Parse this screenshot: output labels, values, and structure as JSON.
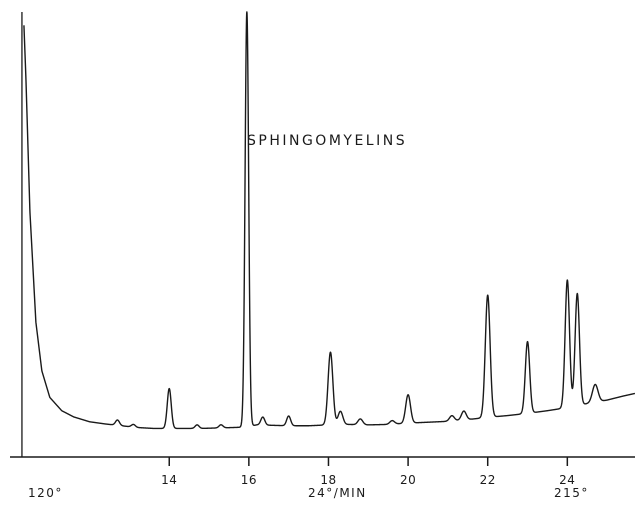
{
  "chart_data": {
    "type": "line",
    "title": "SPHINGOMYELINS",
    "xlabel": "",
    "ylabel": "",
    "xlim": [
      10.0,
      25.7
    ],
    "ylim": [
      0,
      100
    ],
    "x_ticks": [
      14,
      16,
      18,
      20,
      22,
      24
    ],
    "x_tick_labels": [
      "14",
      "16",
      "18",
      "20",
      "22",
      "24"
    ],
    "annotations": {
      "start_temp": "120°",
      "rate": "24°/MIN",
      "end_temp": "215°"
    },
    "grid": false,
    "legend": "none",
    "baseline": [
      [
        10.35,
        97
      ],
      [
        10.4,
        85
      ],
      [
        10.5,
        55
      ],
      [
        10.65,
        30
      ],
      [
        10.8,
        19
      ],
      [
        11.0,
        13
      ],
      [
        11.3,
        10
      ],
      [
        11.6,
        8.6
      ],
      [
        12.0,
        7.5
      ],
      [
        12.4,
        7.0
      ],
      [
        12.8,
        6.6
      ],
      [
        13.2,
        6.2
      ],
      [
        13.6,
        6.0
      ],
      [
        14.0,
        6.0
      ],
      [
        14.4,
        6.0
      ],
      [
        14.8,
        6.0
      ],
      [
        15.2,
        6.1
      ],
      [
        15.6,
        6.2
      ],
      [
        15.9,
        6.3
      ],
      [
        16.2,
        6.8
      ],
      [
        16.6,
        6.7
      ],
      [
        17.0,
        6.6
      ],
      [
        17.5,
        6.6
      ],
      [
        18.0,
        6.8
      ],
      [
        18.5,
        6.9
      ],
      [
        19.0,
        6.8
      ],
      [
        19.5,
        6.9
      ],
      [
        20.0,
        7.2
      ],
      [
        20.5,
        7.4
      ],
      [
        21.0,
        7.6
      ],
      [
        21.5,
        8.0
      ],
      [
        22.0,
        8.5
      ],
      [
        22.5,
        8.9
      ],
      [
        23.0,
        9.4
      ],
      [
        23.5,
        10.0
      ],
      [
        24.0,
        10.7
      ],
      [
        24.5,
        11.6
      ],
      [
        25.0,
        12.4
      ],
      [
        25.4,
        13.3
      ],
      [
        25.7,
        13.9
      ]
    ],
    "peaks": [
      {
        "x": 10.3,
        "height": 100,
        "width": 0.05,
        "clipped": true
      },
      {
        "x": 12.7,
        "height": 1.2,
        "width": 0.05
      },
      {
        "x": 13.1,
        "height": 0.6,
        "width": 0.05
      },
      {
        "x": 14.0,
        "height": 9.0,
        "width": 0.05
      },
      {
        "x": 14.7,
        "height": 0.8,
        "width": 0.05
      },
      {
        "x": 15.3,
        "height": 0.7,
        "width": 0.05
      },
      {
        "x": 15.95,
        "height": 93.7,
        "width": 0.045
      },
      {
        "x": 16.35,
        "height": 1.8,
        "width": 0.05
      },
      {
        "x": 17.0,
        "height": 2.2,
        "width": 0.05
      },
      {
        "x": 18.05,
        "height": 16.4,
        "width": 0.06
      },
      {
        "x": 18.3,
        "height": 3.0,
        "width": 0.06
      },
      {
        "x": 18.8,
        "height": 1.3,
        "width": 0.06
      },
      {
        "x": 19.6,
        "height": 0.8,
        "width": 0.06
      },
      {
        "x": 20.0,
        "height": 6.4,
        "width": 0.06
      },
      {
        "x": 21.1,
        "height": 1.2,
        "width": 0.06
      },
      {
        "x": 21.4,
        "height": 2.0,
        "width": 0.06
      },
      {
        "x": 22.0,
        "height": 27.6,
        "width": 0.06
      },
      {
        "x": 23.0,
        "height": 16.2,
        "width": 0.055
      },
      {
        "x": 24.0,
        "height": 28.8,
        "width": 0.055
      },
      {
        "x": 24.25,
        "height": 25.3,
        "width": 0.055
      },
      {
        "x": 24.7,
        "height": 4.0,
        "width": 0.07
      }
    ]
  }
}
